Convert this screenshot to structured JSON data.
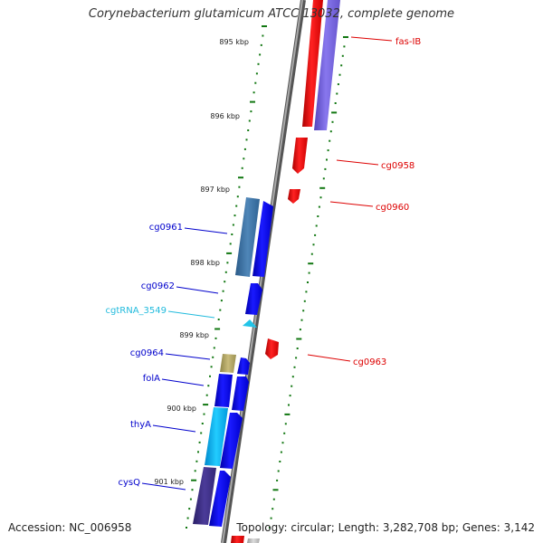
{
  "title": "Corynebacterium glutamicum ATCC 13032, complete genome",
  "footer": {
    "accession": "Accession: NC_006958",
    "summary": "Topology: circular; Length: 3,282,708 bp; Genes: 3,142"
  },
  "colors": {
    "forward": "#ff0000",
    "reverse": "#0000ff",
    "rna": "#22ccee",
    "backbone": "#888888",
    "ticks": "#117711"
  },
  "scale": {
    "ticks": [
      {
        "label": "895 kbp",
        "kbp": 895
      },
      {
        "label": "896 kbp",
        "kbp": 896
      },
      {
        "label": "897 kbp",
        "kbp": 897
      },
      {
        "label": "898 kbp",
        "kbp": 898
      },
      {
        "label": "899 kbp",
        "kbp": 899
      },
      {
        "label": "900 kbp",
        "kbp": 900
      },
      {
        "label": "901 kbp",
        "kbp": 901
      }
    ]
  },
  "labels": {
    "right": [
      {
        "text": "fas-IB",
        "color": "#dd0000"
      },
      {
        "text": "cg0958",
        "color": "#dd0000"
      },
      {
        "text": "cg0960",
        "color": "#dd0000"
      },
      {
        "text": "cg0963",
        "color": "#dd0000"
      }
    ],
    "left": [
      {
        "text": "cg0961",
        "color": "#0000cc"
      },
      {
        "text": "cg0962",
        "color": "#0000cc"
      },
      {
        "text": "cgtRNA_3549",
        "color": "#22bbdd"
      },
      {
        "text": "cg0964",
        "color": "#0000cc"
      },
      {
        "text": "folA",
        "color": "#0000cc"
      },
      {
        "text": "thyA",
        "color": "#0000cc"
      },
      {
        "text": "cysQ",
        "color": "#0000cc"
      }
    ]
  }
}
